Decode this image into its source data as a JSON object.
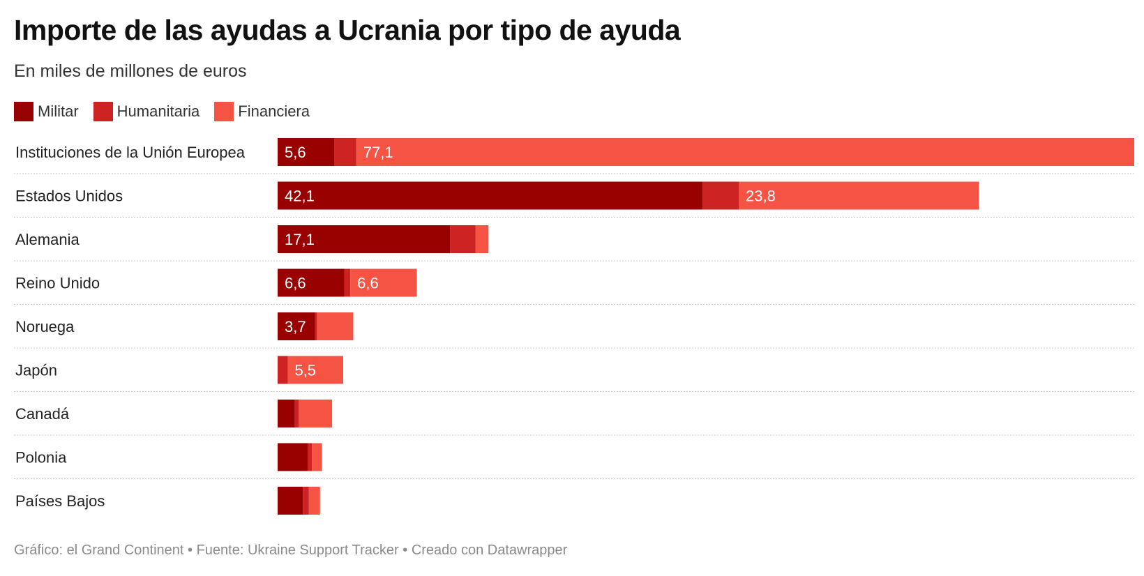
{
  "title": "Importe de las ayudas a Ucrania por tipo de ayuda",
  "subtitle": "En miles de millones de euros",
  "legend": [
    {
      "label": "Militar",
      "color": "#990000"
    },
    {
      "label": "Humanitaria",
      "color": "#cc2222"
    },
    {
      "label": "Financiera",
      "color": "#f55445"
    }
  ],
  "footer": "Gráfico: el Grand Continent • Fuente: Ukraine Support Tracker • Creado con Datawrapper",
  "chart_data": {
    "type": "bar",
    "orientation": "horizontal",
    "stacked": true,
    "categories": [
      "Instituciones de la Unión Europea",
      "Estados Unidos",
      "Alemania",
      "Reino Unido",
      "Noruega",
      "Japón",
      "Canadá",
      "Polonia",
      "Países Bajos"
    ],
    "series": [
      {
        "name": "Militar",
        "color": "#990000",
        "values": [
          5.6,
          42.1,
          17.1,
          6.6,
          3.7,
          0,
          1.7,
          3.0,
          2.5
        ]
      },
      {
        "name": "Humanitaria",
        "color": "#cc2222",
        "values": [
          2.2,
          3.6,
          2.5,
          0.6,
          0.2,
          1.0,
          0.4,
          0.4,
          0.6
        ]
      },
      {
        "name": "Financiera",
        "color": "#f55445",
        "values": [
          77.1,
          23.8,
          1.3,
          6.6,
          3.6,
          5.5,
          3.3,
          1.0,
          1.1
        ]
      }
    ],
    "data_labels": [
      [
        "5,6",
        "",
        "77,1"
      ],
      [
        "42,1",
        "",
        "23,8"
      ],
      [
        "17,1",
        "",
        ""
      ],
      [
        "6,6",
        "",
        "6,6"
      ],
      [
        "3,7",
        "",
        ""
      ],
      [
        "",
        "",
        "5,5"
      ],
      [
        "",
        "",
        ""
      ],
      [
        "",
        "",
        ""
      ],
      [
        "",
        "",
        ""
      ]
    ],
    "xlim": [
      0,
      84.9
    ],
    "grid": false,
    "legend_position": "top-left"
  }
}
